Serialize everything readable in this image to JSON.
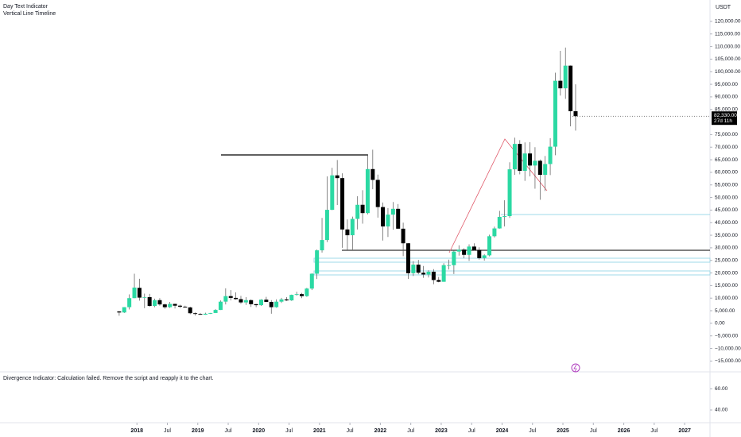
{
  "chart_data": {
    "type": "candlestick",
    "indicators": [
      "Day Text Indicator",
      "Vertical Line Timeline"
    ],
    "currency": "USDT",
    "up_color": "#2bd9a3",
    "down_color": "#000000",
    "x": [
      "2017-09",
      "2017-10",
      "2017-11",
      "2017-12",
      "2018-01",
      "2018-02",
      "2018-03",
      "2018-04",
      "2018-05",
      "2018-06",
      "2018-07",
      "2018-08",
      "2018-09",
      "2018-10",
      "2018-11",
      "2018-12",
      "2019-01",
      "2019-02",
      "2019-03",
      "2019-04",
      "2019-05",
      "2019-06",
      "2019-07",
      "2019-08",
      "2019-09",
      "2019-10",
      "2019-11",
      "2019-12",
      "2020-01",
      "2020-02",
      "2020-03",
      "2020-04",
      "2020-05",
      "2020-06",
      "2020-07",
      "2020-08",
      "2020-09",
      "2020-10",
      "2020-11",
      "2020-12",
      "2021-01",
      "2021-02",
      "2021-03",
      "2021-04",
      "2021-05",
      "2021-06",
      "2021-07",
      "2021-08",
      "2021-09",
      "2021-10",
      "2021-11",
      "2021-12",
      "2022-01",
      "2022-02",
      "2022-03",
      "2022-04",
      "2022-05",
      "2022-06",
      "2022-07",
      "2022-08",
      "2022-09",
      "2022-10",
      "2022-11",
      "2022-12",
      "2023-01",
      "2023-02",
      "2023-03",
      "2023-04",
      "2023-05",
      "2023-06",
      "2023-07",
      "2023-08",
      "2023-09",
      "2023-10",
      "2023-11",
      "2023-12",
      "2024-01",
      "2024-02",
      "2024-03",
      "2024-04",
      "2024-05",
      "2024-06",
      "2024-07",
      "2024-08",
      "2024-09",
      "2024-10",
      "2024-11",
      "2024-12",
      "2025-01",
      "2025-02",
      "2025-03"
    ],
    "open": [
      4700,
      4300,
      6400,
      10000,
      14100,
      10200,
      10400,
      6900,
      9200,
      7500,
      6400,
      7700,
      7000,
      6600,
      6300,
      4000,
      3700,
      3400,
      3800,
      4100,
      5300,
      8600,
      10800,
      10100,
      9600,
      8300,
      9200,
      7600,
      7200,
      9400,
      8500,
      6400,
      8600,
      9500,
      9100,
      11300,
      11600,
      10800,
      13800,
      19700,
      29000,
      33100,
      45100,
      58800,
      57700,
      37300,
      35000,
      41500,
      47100,
      43800,
      61300,
      57000,
      46200,
      38500,
      43200,
      45500,
      37600,
      31800,
      19900,
      23300,
      20100,
      19400,
      20500,
      17200,
      16500,
      23100,
      23100,
      28500,
      29300,
      27200,
      30500,
      29200,
      25900,
      27000,
      34600,
      37700,
      42300,
      42600,
      61200,
      71300,
      60600,
      67500,
      62700,
      64600,
      59000,
      63300,
      70200,
      96400,
      93400,
      102400,
      84300
    ],
    "high": [
      4900,
      6400,
      11500,
      19700,
      17700,
      11800,
      11700,
      9800,
      10000,
      7800,
      8500,
      7800,
      7400,
      7000,
      6600,
      4300,
      4100,
      4200,
      4100,
      5600,
      9100,
      13900,
      13200,
      12300,
      10900,
      10400,
      9500,
      7700,
      9600,
      10500,
      9200,
      9500,
      10100,
      10400,
      11400,
      12500,
      12100,
      14100,
      19900,
      29300,
      41900,
      58400,
      61800,
      64900,
      59600,
      41300,
      42400,
      50500,
      52900,
      67000,
      69000,
      59100,
      48000,
      45800,
      48200,
      47400,
      40000,
      31900,
      24700,
      25200,
      22800,
      21100,
      21500,
      18400,
      23900,
      25300,
      29200,
      31000,
      29800,
      31400,
      31800,
      30200,
      27500,
      35200,
      38400,
      44700,
      48900,
      64000,
      73800,
      72800,
      71900,
      72000,
      70000,
      65100,
      66500,
      73600,
      99600,
      108300,
      109600,
      102500,
      95000
    ],
    "low": [
      3000,
      4100,
      5500,
      10000,
      9000,
      6000,
      6600,
      6400,
      7000,
      5800,
      6100,
      5900,
      6100,
      6200,
      3600,
      3100,
      3400,
      3400,
      3700,
      4100,
      5300,
      7500,
      9100,
      9400,
      7700,
      7300,
      6500,
      6400,
      6900,
      8500,
      3800,
      6200,
      8100,
      8900,
      8900,
      11000,
      10000,
      10500,
      13200,
      17600,
      28100,
      32300,
      45000,
      47000,
      30000,
      28800,
      29300,
      37300,
      39600,
      43300,
      53300,
      42000,
      32900,
      34300,
      37200,
      37600,
      26700,
      17600,
      18800,
      19500,
      18100,
      18200,
      15500,
      16300,
      16500,
      21400,
      19600,
      26900,
      25900,
      24800,
      28900,
      25300,
      24900,
      26600,
      34100,
      37600,
      38500,
      41900,
      59000,
      59200,
      56600,
      58400,
      53500,
      49100,
      52600,
      58900,
      66800,
      90500,
      89200,
      78300,
      76600
    ],
    "close": [
      4300,
      6400,
      10000,
      14200,
      10200,
      10400,
      6900,
      9200,
      7500,
      6400,
      7700,
      7000,
      6600,
      6300,
      4000,
      3700,
      3400,
      3800,
      4100,
      5300,
      8600,
      10800,
      10100,
      9600,
      8300,
      9200,
      7600,
      7200,
      9400,
      8500,
      6400,
      8600,
      9500,
      9100,
      11300,
      11600,
      10800,
      13800,
      19700,
      29000,
      33100,
      45100,
      58800,
      57700,
      37300,
      35000,
      41500,
      47100,
      43800,
      61300,
      57000,
      46200,
      38500,
      43200,
      45500,
      37600,
      31800,
      19900,
      23300,
      20100,
      19400,
      20500,
      17200,
      16500,
      23100,
      23100,
      28500,
      29300,
      27200,
      30500,
      29200,
      25900,
      27000,
      34600,
      37700,
      42300,
      42600,
      61200,
      71300,
      60600,
      67500,
      62700,
      64600,
      59000,
      63300,
      70200,
      96400,
      93400,
      102400,
      84300,
      82330
    ],
    "last_price": {
      "value": 82330,
      "label": "82,330.00",
      "countdown": "27d 11h"
    },
    "xlim": [
      "2015-10",
      "2027-06"
    ],
    "xticks": [
      {
        "value": "2018-01",
        "label": "2018"
      },
      {
        "value": "2018-07",
        "label": "Jul"
      },
      {
        "value": "2019-01",
        "label": "2019"
      },
      {
        "value": "2019-07",
        "label": "Jul"
      },
      {
        "value": "2020-01",
        "label": "2020"
      },
      {
        "value": "2020-07",
        "label": "Jul"
      },
      {
        "value": "2021-01",
        "label": "2021"
      },
      {
        "value": "2021-07",
        "label": "Jul"
      },
      {
        "value": "2022-01",
        "label": "2022"
      },
      {
        "value": "2022-07",
        "label": "Jul"
      },
      {
        "value": "2023-01",
        "label": "2023"
      },
      {
        "value": "2023-07",
        "label": "Jul"
      },
      {
        "value": "2024-01",
        "label": "2024"
      },
      {
        "value": "2024-07",
        "label": "Jul"
      },
      {
        "value": "2025-01",
        "label": "2025"
      },
      {
        "value": "2025-07",
        "label": "Jul"
      },
      {
        "value": "2026-01",
        "label": "2026"
      },
      {
        "value": "2026-07",
        "label": "Jul"
      },
      {
        "value": "2027-01",
        "label": "2027"
      }
    ],
    "ylim": [
      -19300,
      128500
    ],
    "yticks": [
      {
        "value": 120000,
        "label": "120,000.00"
      },
      {
        "value": 115000,
        "label": "115,000.00"
      },
      {
        "value": 110000,
        "label": "110,000.00"
      },
      {
        "value": 105000,
        "label": "105,000.00"
      },
      {
        "value": 100000,
        "label": "100,000.00"
      },
      {
        "value": 95000,
        "label": "95,000.00"
      },
      {
        "value": 90000,
        "label": "90,000.00"
      },
      {
        "value": 85000,
        "label": "85,000.00"
      },
      {
        "value": 75000,
        "label": "75,000.00"
      },
      {
        "value": 70000,
        "label": "70,000.00"
      },
      {
        "value": 65000,
        "label": "65,000.00"
      },
      {
        "value": 60000,
        "label": "60,000.00"
      },
      {
        "value": 55000,
        "label": "55,000.00"
      },
      {
        "value": 50000,
        "label": "50,000.00"
      },
      {
        "value": 45000,
        "label": "45,000.00"
      },
      {
        "value": 40000,
        "label": "40,000.00"
      },
      {
        "value": 35000,
        "label": "35,000.00"
      },
      {
        "value": 30000,
        "label": "30,000.00"
      },
      {
        "value": 25000,
        "label": "25,000.00"
      },
      {
        "value": 20000,
        "label": "20,000.00"
      },
      {
        "value": 15000,
        "label": "15,000.00"
      },
      {
        "value": 10000,
        "label": "10,000.00"
      },
      {
        "value": 5000,
        "label": "5,000.00"
      },
      {
        "value": 0,
        "label": "0.00"
      },
      {
        "value": -5000,
        "label": "−5,000.00"
      },
      {
        "value": -10000,
        "label": "−10,000.00"
      },
      {
        "value": -15000,
        "label": "−15,000.00"
      }
    ],
    "indicator_pane": {
      "message": "Divergence Indicator: Calculation failed. Remove the script and reapply it to the chart.",
      "ylim": [
        28,
        76
      ],
      "yticks": [
        {
          "value": 60,
          "label": "60.00"
        },
        {
          "value": 40,
          "label": "40.00"
        }
      ]
    }
  }
}
